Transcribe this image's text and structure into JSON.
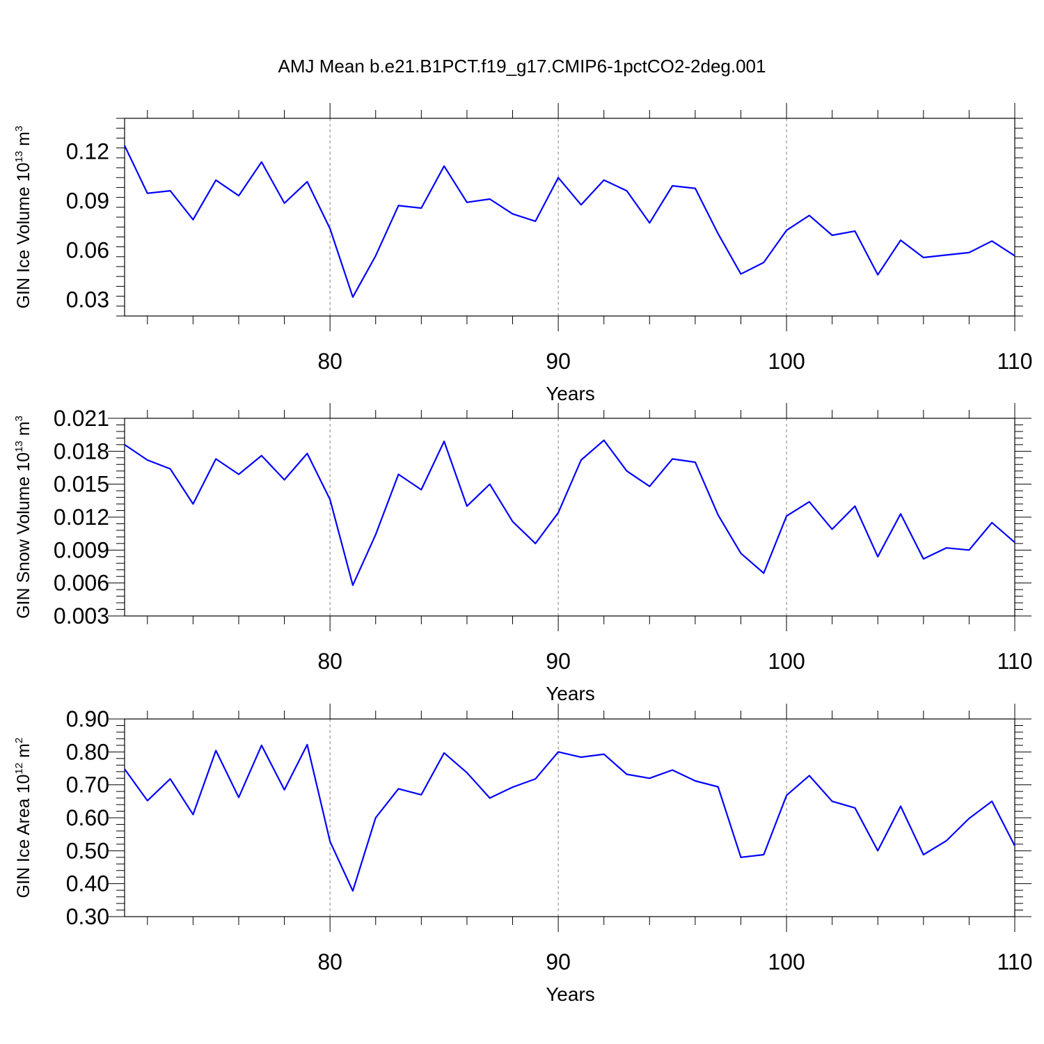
{
  "title": "AMJ Mean b.e21.B1PCT.f19_g17.CMIP6-1pctCO2-2deg.001",
  "colors": {
    "line": "#0000ff",
    "axis": "#000000",
    "grid": "#808080"
  },
  "chart_data": [
    {
      "type": "line",
      "ylabel": "GIN Ice Volume 10",
      "ylabel_exp": "13",
      "ylabel_unit": " m",
      "ylabel_unit_exp": "3",
      "xlabel": "Years",
      "xlim": [
        71,
        110
      ],
      "ylim": [
        0.02,
        0.14
      ],
      "yticks": [
        0.03,
        0.06,
        0.09,
        0.12
      ],
      "ytick_labels": [
        "0.03",
        "0.06",
        "0.09",
        "0.12"
      ],
      "xticks": [
        80,
        90,
        100,
        110
      ],
      "xtick_labels": [
        "80",
        "90",
        "100",
        "110"
      ],
      "grid_x": [
        80,
        90,
        100
      ],
      "series": [
        {
          "x": [
            71,
            72,
            73,
            74,
            75,
            76,
            77,
            78,
            79,
            80,
            81,
            82,
            83,
            84,
            85,
            86,
            87,
            88,
            89,
            90,
            91,
            92,
            93,
            94,
            95,
            96,
            97,
            98,
            99,
            100,
            101,
            102,
            103,
            104,
            105,
            106,
            107,
            108,
            109,
            110
          ],
          "values": [
            0.1235,
            0.0945,
            0.096,
            0.0785,
            0.1025,
            0.093,
            0.1135,
            0.0885,
            0.1015,
            0.073,
            0.0315,
            0.0565,
            0.087,
            0.0855,
            0.111,
            0.089,
            0.091,
            0.082,
            0.0775,
            0.104,
            0.0875,
            0.1025,
            0.096,
            0.0765,
            0.099,
            0.0975,
            0.07,
            0.0455,
            0.0525,
            0.072,
            0.081,
            0.069,
            0.0715,
            0.045,
            0.066,
            0.0555,
            0.057,
            0.0585,
            0.0655,
            0.0565
          ]
        }
      ]
    },
    {
      "type": "line",
      "ylabel": "GIN Snow Volume 10",
      "ylabel_exp": "13",
      "ylabel_unit": " m",
      "ylabel_unit_exp": "3",
      "xlabel": "Years",
      "xlim": [
        71,
        110
      ],
      "ylim": [
        0.003,
        0.021
      ],
      "yticks": [
        0.003,
        0.006,
        0.009,
        0.012,
        0.015,
        0.018,
        0.021
      ],
      "ytick_labels": [
        "0.003",
        "0.006",
        "0.009",
        "0.012",
        "0.015",
        "0.018",
        "0.021"
      ],
      "xticks": [
        80,
        90,
        100,
        110
      ],
      "xtick_labels": [
        "80",
        "90",
        "100",
        "110"
      ],
      "grid_x": [
        80,
        90,
        100
      ],
      "series": [
        {
          "x": [
            71,
            72,
            73,
            74,
            75,
            76,
            77,
            78,
            79,
            80,
            81,
            82,
            83,
            84,
            85,
            86,
            87,
            88,
            89,
            90,
            91,
            92,
            93,
            94,
            95,
            96,
            97,
            98,
            99,
            100,
            101,
            102,
            103,
            104,
            105,
            106,
            107,
            108,
            109,
            110
          ],
          "values": [
            0.0186,
            0.0172,
            0.0164,
            0.0132,
            0.0173,
            0.0159,
            0.0176,
            0.0154,
            0.0178,
            0.0136,
            0.0058,
            0.0104,
            0.0159,
            0.0145,
            0.0189,
            0.013,
            0.015,
            0.0116,
            0.0096,
            0.0124,
            0.0172,
            0.019,
            0.0162,
            0.0148,
            0.0173,
            0.017,
            0.0122,
            0.0087,
            0.0069,
            0.0121,
            0.0134,
            0.0109,
            0.013,
            0.0084,
            0.0123,
            0.0082,
            0.0092,
            0.009,
            0.0115,
            0.0097
          ]
        }
      ]
    },
    {
      "type": "line",
      "ylabel": "GIN Ice Area 10",
      "ylabel_exp": "12",
      "ylabel_unit": " m",
      "ylabel_unit_exp": "2",
      "xlabel": "Years",
      "xlim": [
        71,
        110
      ],
      "ylim": [
        0.3,
        0.9
      ],
      "yticks": [
        0.3,
        0.4,
        0.5,
        0.6,
        0.7,
        0.8,
        0.9
      ],
      "ytick_labels": [
        "0.30",
        "0.40",
        "0.50",
        "0.60",
        "0.70",
        "0.80",
        "0.90"
      ],
      "xticks": [
        80,
        90,
        100,
        110
      ],
      "xtick_labels": [
        "80",
        "90",
        "100",
        "110"
      ],
      "grid_x": [
        80,
        90,
        100
      ],
      "series": [
        {
          "x": [
            71,
            72,
            73,
            74,
            75,
            76,
            77,
            78,
            79,
            80,
            81,
            82,
            83,
            84,
            85,
            86,
            87,
            88,
            89,
            90,
            91,
            92,
            93,
            94,
            95,
            96,
            97,
            98,
            99,
            100,
            101,
            102,
            103,
            104,
            105,
            106,
            107,
            108,
            109,
            110
          ],
          "values": [
            0.748,
            0.652,
            0.718,
            0.61,
            0.804,
            0.662,
            0.82,
            0.685,
            0.822,
            0.528,
            0.378,
            0.6,
            0.688,
            0.67,
            0.797,
            0.737,
            0.66,
            0.693,
            0.718,
            0.8,
            0.784,
            0.793,
            0.732,
            0.72,
            0.745,
            0.712,
            0.694,
            0.48,
            0.488,
            0.668,
            0.728,
            0.65,
            0.63,
            0.5,
            0.635,
            0.488,
            0.53,
            0.598,
            0.65,
            0.515
          ]
        }
      ]
    }
  ]
}
